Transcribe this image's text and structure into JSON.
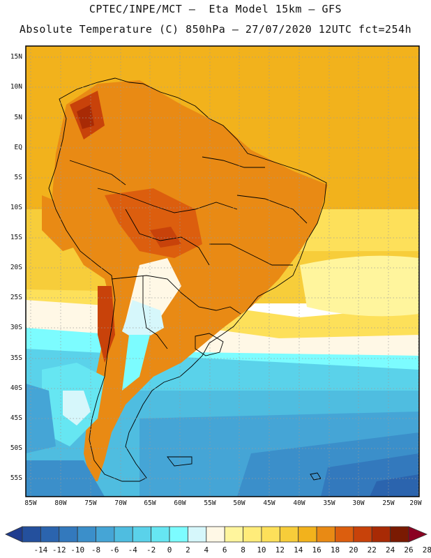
{
  "title_line1": "CPTEC/INPE/MCT –  Eta Model 15km – GFS",
  "title_line2": "Absolute Temperature (C) 850hPa – 27/07/2020 12UTC fct=254h",
  "map": {
    "region": "South America",
    "variable": "Absolute Temperature at 850hPa",
    "units": "C",
    "lat_labels": [
      "15N",
      "10N",
      "5N",
      "EQ",
      "5S",
      "10S",
      "15S",
      "20S",
      "25S",
      "30S",
      "35S",
      "40S",
      "45S",
      "50S",
      "55S"
    ],
    "lon_labels": [
      "85W",
      "80W",
      "75W",
      "70W",
      "65W",
      "60W",
      "55W",
      "50W",
      "45W",
      "40W",
      "35W",
      "30W",
      "25W",
      "20W"
    ]
  },
  "colorbar": {
    "labels": [
      "-14",
      "-12",
      "-10",
      "-8",
      "-6",
      "-4",
      "-2",
      "0",
      "2",
      "4",
      "6",
      "8",
      "10",
      "12",
      "14",
      "16",
      "18",
      "20",
      "22",
      "24",
      "26",
      "28"
    ],
    "colors": [
      "#1f3c8f",
      "#24509d",
      "#2b64ae",
      "#3379bd",
      "#3b8fca",
      "#45a5d6",
      "#4fbde0",
      "#5ad2ea",
      "#66e6f2",
      "#7cfcff",
      "#d6f7fb",
      "#fff8e6",
      "#fff59d",
      "#ffec7a",
      "#fde05a",
      "#f7cd3a",
      "#f2b21c",
      "#e98a14",
      "#dc5e0e",
      "#c8420a",
      "#a82a05",
      "#7a1a02",
      "#8b0022"
    ]
  }
}
